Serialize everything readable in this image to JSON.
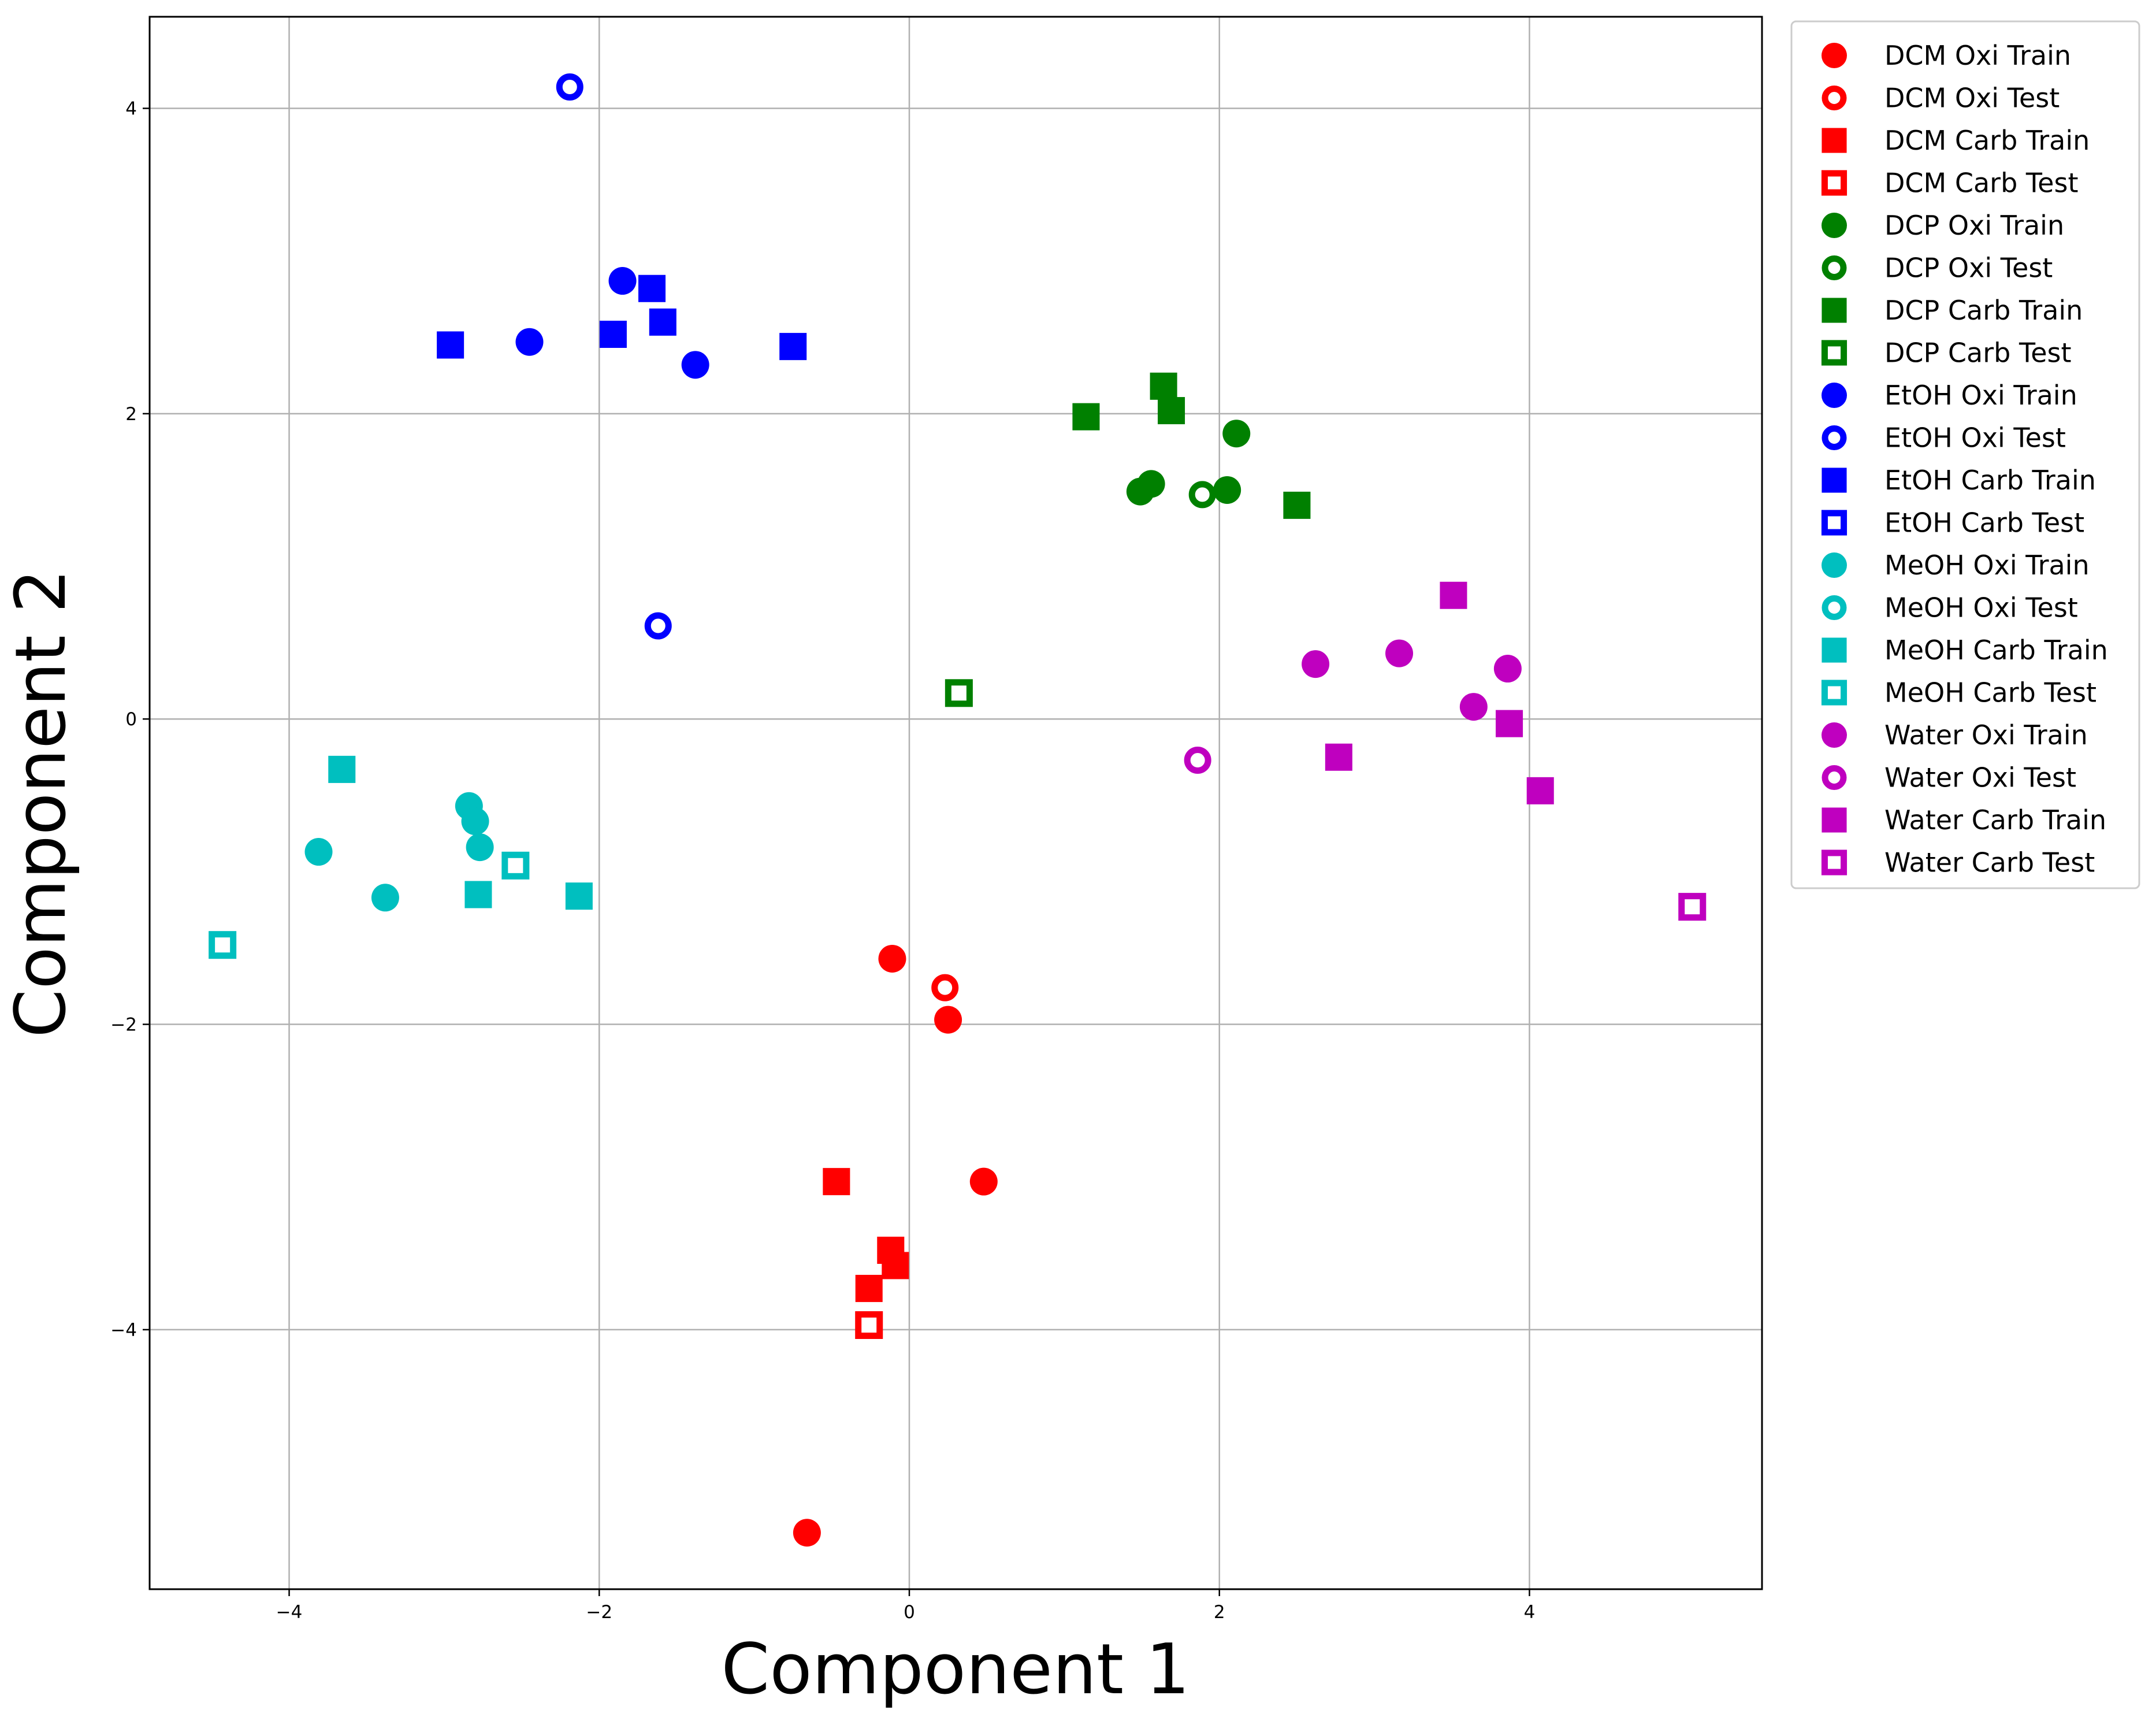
{
  "chart_data": {
    "type": "scatter",
    "title": "",
    "xlabel": "Component 1",
    "ylabel": "Component 2",
    "xlim": [
      -4.9,
      5.5
    ],
    "ylim": [
      -5.7,
      4.6
    ],
    "xticks": [
      -4,
      -2,
      0,
      2,
      4
    ],
    "yticks": [
      -4,
      -2,
      0,
      2,
      4
    ],
    "xtick_labels": [
      "−4",
      "−2",
      "0",
      "2",
      "4"
    ],
    "ytick_labels": [
      "−4",
      "−2",
      "0",
      "2",
      "4"
    ],
    "grid": true,
    "legend_position": "outside top-right",
    "series": [
      {
        "name": "DCM Oxi Train",
        "color": "#ff0000",
        "marker": "circle",
        "filled": true,
        "points": [
          [
            -0.11,
            -1.57
          ],
          [
            0.25,
            -1.97
          ],
          [
            0.48,
            -3.03
          ],
          [
            -0.66,
            -5.33
          ]
        ]
      },
      {
        "name": "DCM Oxi Test",
        "color": "#ff0000",
        "marker": "circle",
        "filled": false,
        "points": [
          [
            0.23,
            -1.76
          ]
        ]
      },
      {
        "name": "DCM Carb Train",
        "color": "#ff0000",
        "marker": "square",
        "filled": true,
        "points": [
          [
            -0.47,
            -3.03
          ],
          [
            -0.12,
            -3.48
          ],
          [
            -0.09,
            -3.58
          ],
          [
            -0.26,
            -3.73
          ]
        ]
      },
      {
        "name": "DCM Carb Test",
        "color": "#ff0000",
        "marker": "square",
        "filled": false,
        "points": [
          [
            -0.26,
            -3.97
          ]
        ]
      },
      {
        "name": "DCP Oxi Train",
        "color": "#008000",
        "marker": "circle",
        "filled": true,
        "points": [
          [
            1.49,
            1.49
          ],
          [
            1.56,
            1.54
          ],
          [
            2.05,
            1.5
          ],
          [
            2.11,
            1.87
          ]
        ]
      },
      {
        "name": "DCP Oxi Test",
        "color": "#008000",
        "marker": "circle",
        "filled": false,
        "points": [
          [
            1.89,
            1.47
          ]
        ]
      },
      {
        "name": "DCP Carb Train",
        "color": "#008000",
        "marker": "square",
        "filled": true,
        "points": [
          [
            1.14,
            1.98
          ],
          [
            1.64,
            2.18
          ],
          [
            1.69,
            2.02
          ],
          [
            2.5,
            1.4
          ]
        ]
      },
      {
        "name": "DCP Carb Test",
        "color": "#008000",
        "marker": "square",
        "filled": false,
        "points": [
          [
            0.32,
            0.17
          ]
        ]
      },
      {
        "name": "EtOH Oxi Train",
        "color": "#0000ff",
        "marker": "circle",
        "filled": true,
        "points": [
          [
            -2.45,
            2.47
          ],
          [
            -1.85,
            2.87
          ],
          [
            -1.38,
            2.32
          ]
        ]
      },
      {
        "name": "EtOH Oxi Test",
        "color": "#0000ff",
        "marker": "circle",
        "filled": false,
        "points": [
          [
            -2.19,
            4.14
          ],
          [
            -1.62,
            0.61
          ]
        ]
      },
      {
        "name": "EtOH Carb Train",
        "color": "#0000ff",
        "marker": "square",
        "filled": true,
        "points": [
          [
            -2.96,
            2.45
          ],
          [
            -1.91,
            2.52
          ],
          [
            -1.66,
            2.82
          ],
          [
            -1.59,
            2.6
          ],
          [
            -0.75,
            2.44
          ]
        ]
      },
      {
        "name": "EtOH Carb Test",
        "color": "#0000ff",
        "marker": "square",
        "filled": false,
        "points": []
      },
      {
        "name": "MeOH Oxi Train",
        "color": "#00bfbf",
        "marker": "circle",
        "filled": true,
        "points": [
          [
            -2.84,
            -0.57
          ],
          [
            -2.8,
            -0.67
          ],
          [
            -2.77,
            -0.84
          ],
          [
            -3.81,
            -0.87
          ],
          [
            -3.38,
            -1.17
          ]
        ]
      },
      {
        "name": "MeOH Oxi Test",
        "color": "#00bfbf",
        "marker": "circle",
        "filled": false,
        "points": []
      },
      {
        "name": "MeOH Carb Train",
        "color": "#00bfbf",
        "marker": "square",
        "filled": true,
        "points": [
          [
            -3.66,
            -0.33
          ],
          [
            -2.78,
            -1.15
          ],
          [
            -2.13,
            -1.16
          ]
        ]
      },
      {
        "name": "MeOH Carb Test",
        "color": "#00bfbf",
        "marker": "square",
        "filled": false,
        "points": [
          [
            -2.54,
            -0.96
          ],
          [
            -4.43,
            -1.48
          ]
        ]
      },
      {
        "name": "Water Oxi Train",
        "color": "#bf00bf",
        "marker": "circle",
        "filled": true,
        "points": [
          [
            2.62,
            0.36
          ],
          [
            3.16,
            0.43
          ],
          [
            3.64,
            0.08
          ],
          [
            3.86,
            0.33
          ]
        ]
      },
      {
        "name": "Water Oxi Test",
        "color": "#bf00bf",
        "marker": "circle",
        "filled": false,
        "points": [
          [
            1.86,
            -0.27
          ]
        ]
      },
      {
        "name": "Water Carb Train",
        "color": "#bf00bf",
        "marker": "square",
        "filled": true,
        "points": [
          [
            3.51,
            0.81
          ],
          [
            3.87,
            -0.03
          ],
          [
            2.77,
            -0.25
          ],
          [
            4.07,
            -0.47
          ]
        ]
      },
      {
        "name": "Water Carb Test",
        "color": "#bf00bf",
        "marker": "square",
        "filled": false,
        "points": [
          [
            5.05,
            -1.23
          ]
        ]
      }
    ]
  }
}
